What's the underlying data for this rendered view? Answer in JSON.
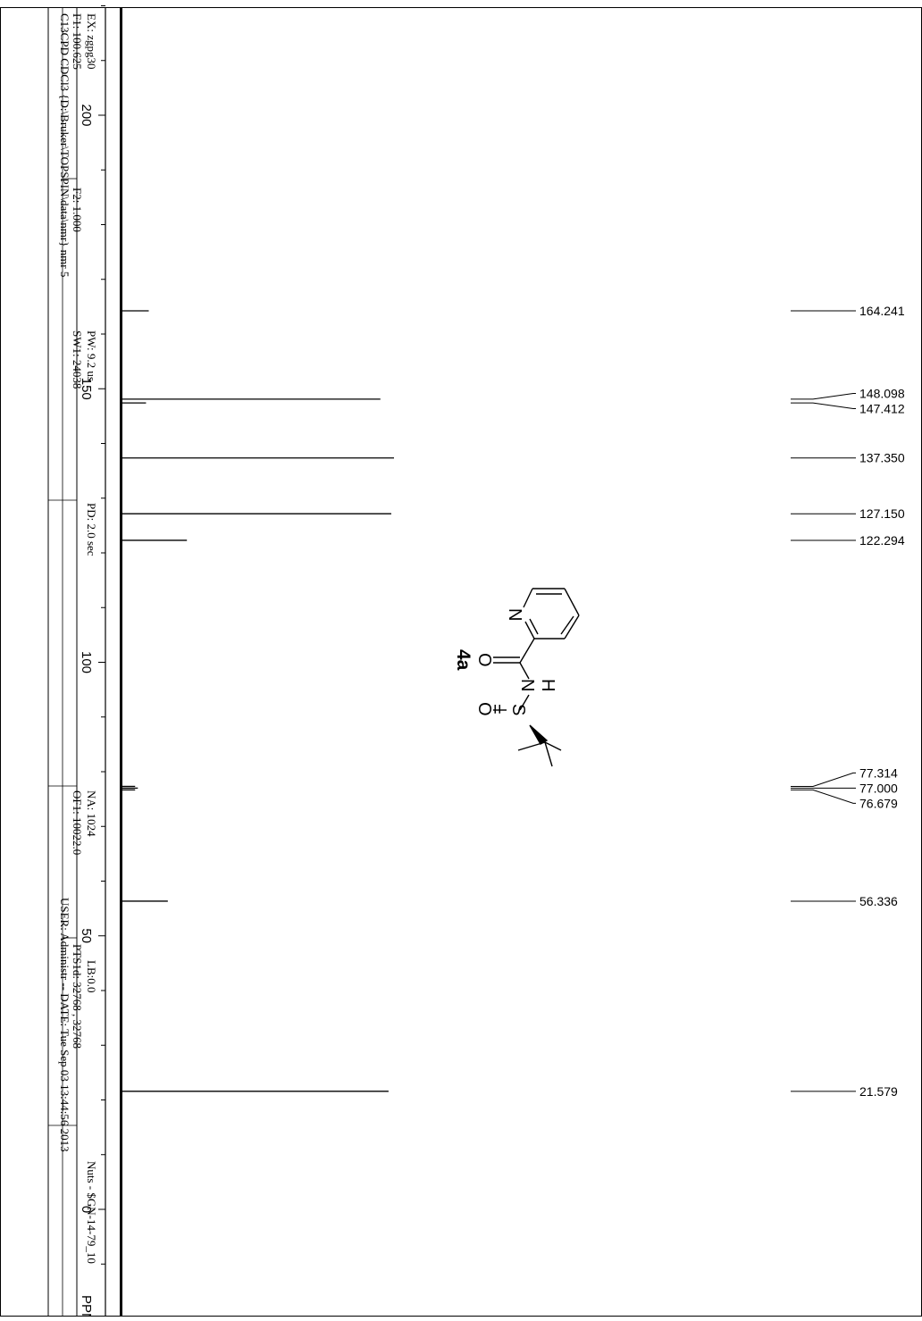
{
  "chart_data": {
    "type": "line",
    "title": "",
    "xlabel": "PPM",
    "ylabel": "",
    "xlim": [
      -14,
      220
    ],
    "xticks": [
      0,
      50,
      100,
      150,
      200
    ],
    "xtick_labels": [
      "0",
      "50",
      "100",
      "150",
      "200"
    ],
    "axis_unit_label": "PPM",
    "peaks": [
      {
        "ppm": 164.241,
        "intensity": 0.1,
        "label": "164.241"
      },
      {
        "ppm": 148.098,
        "intensity": 0.95,
        "label": "148.098"
      },
      {
        "ppm": 147.412,
        "intensity": 0.09,
        "label": "147.412"
      },
      {
        "ppm": 137.35,
        "intensity": 1.0,
        "label": "137.350"
      },
      {
        "ppm": 127.15,
        "intensity": 0.99,
        "label": "127.150"
      },
      {
        "ppm": 122.294,
        "intensity": 0.24,
        "label": "122.294"
      },
      {
        "ppm": 77.314,
        "intensity": 0.05,
        "label": "77.314"
      },
      {
        "ppm": 77.0,
        "intensity": 0.06,
        "label": "77.000"
      },
      {
        "ppm": 76.679,
        "intensity": 0.05,
        "label": "76.679"
      },
      {
        "ppm": 56.336,
        "intensity": 0.17,
        "label": "56.336"
      },
      {
        "ppm": 21.579,
        "intensity": 0.98,
        "label": "21.579"
      }
    ]
  },
  "header": {
    "line1": "C13CPD CDCl3 {D:\\Bruker\\TOPSPIN\\data\\nmr} nmr 5",
    "f1": "F1: 100.625",
    "f2": "F2: 1.000",
    "sw1": "SW1: 24038",
    "of1": "OF1: 10022.0",
    "pts1d": "PTS1d: 32768 , 32768",
    "ex": "EX: zgpg30",
    "pw": "PW: 9.2 us",
    "pd": "PD: 2.0 sec",
    "na": "NA: 1024",
    "lb": "LB:0.0",
    "user": "USER: Administr -- DATE: Tue Sep 03 13:44:56 2013",
    "nuts": "Nuts - $GN-14-79_10"
  },
  "structure": {
    "compound_label": "4a",
    "atoms": {
      "n_ring": "N",
      "o_carbonyl": "O",
      "n_amide": "N",
      "h_amide": "H",
      "s": "S",
      "o_sulfinyl": "O",
      "double_bond": "="
    }
  }
}
